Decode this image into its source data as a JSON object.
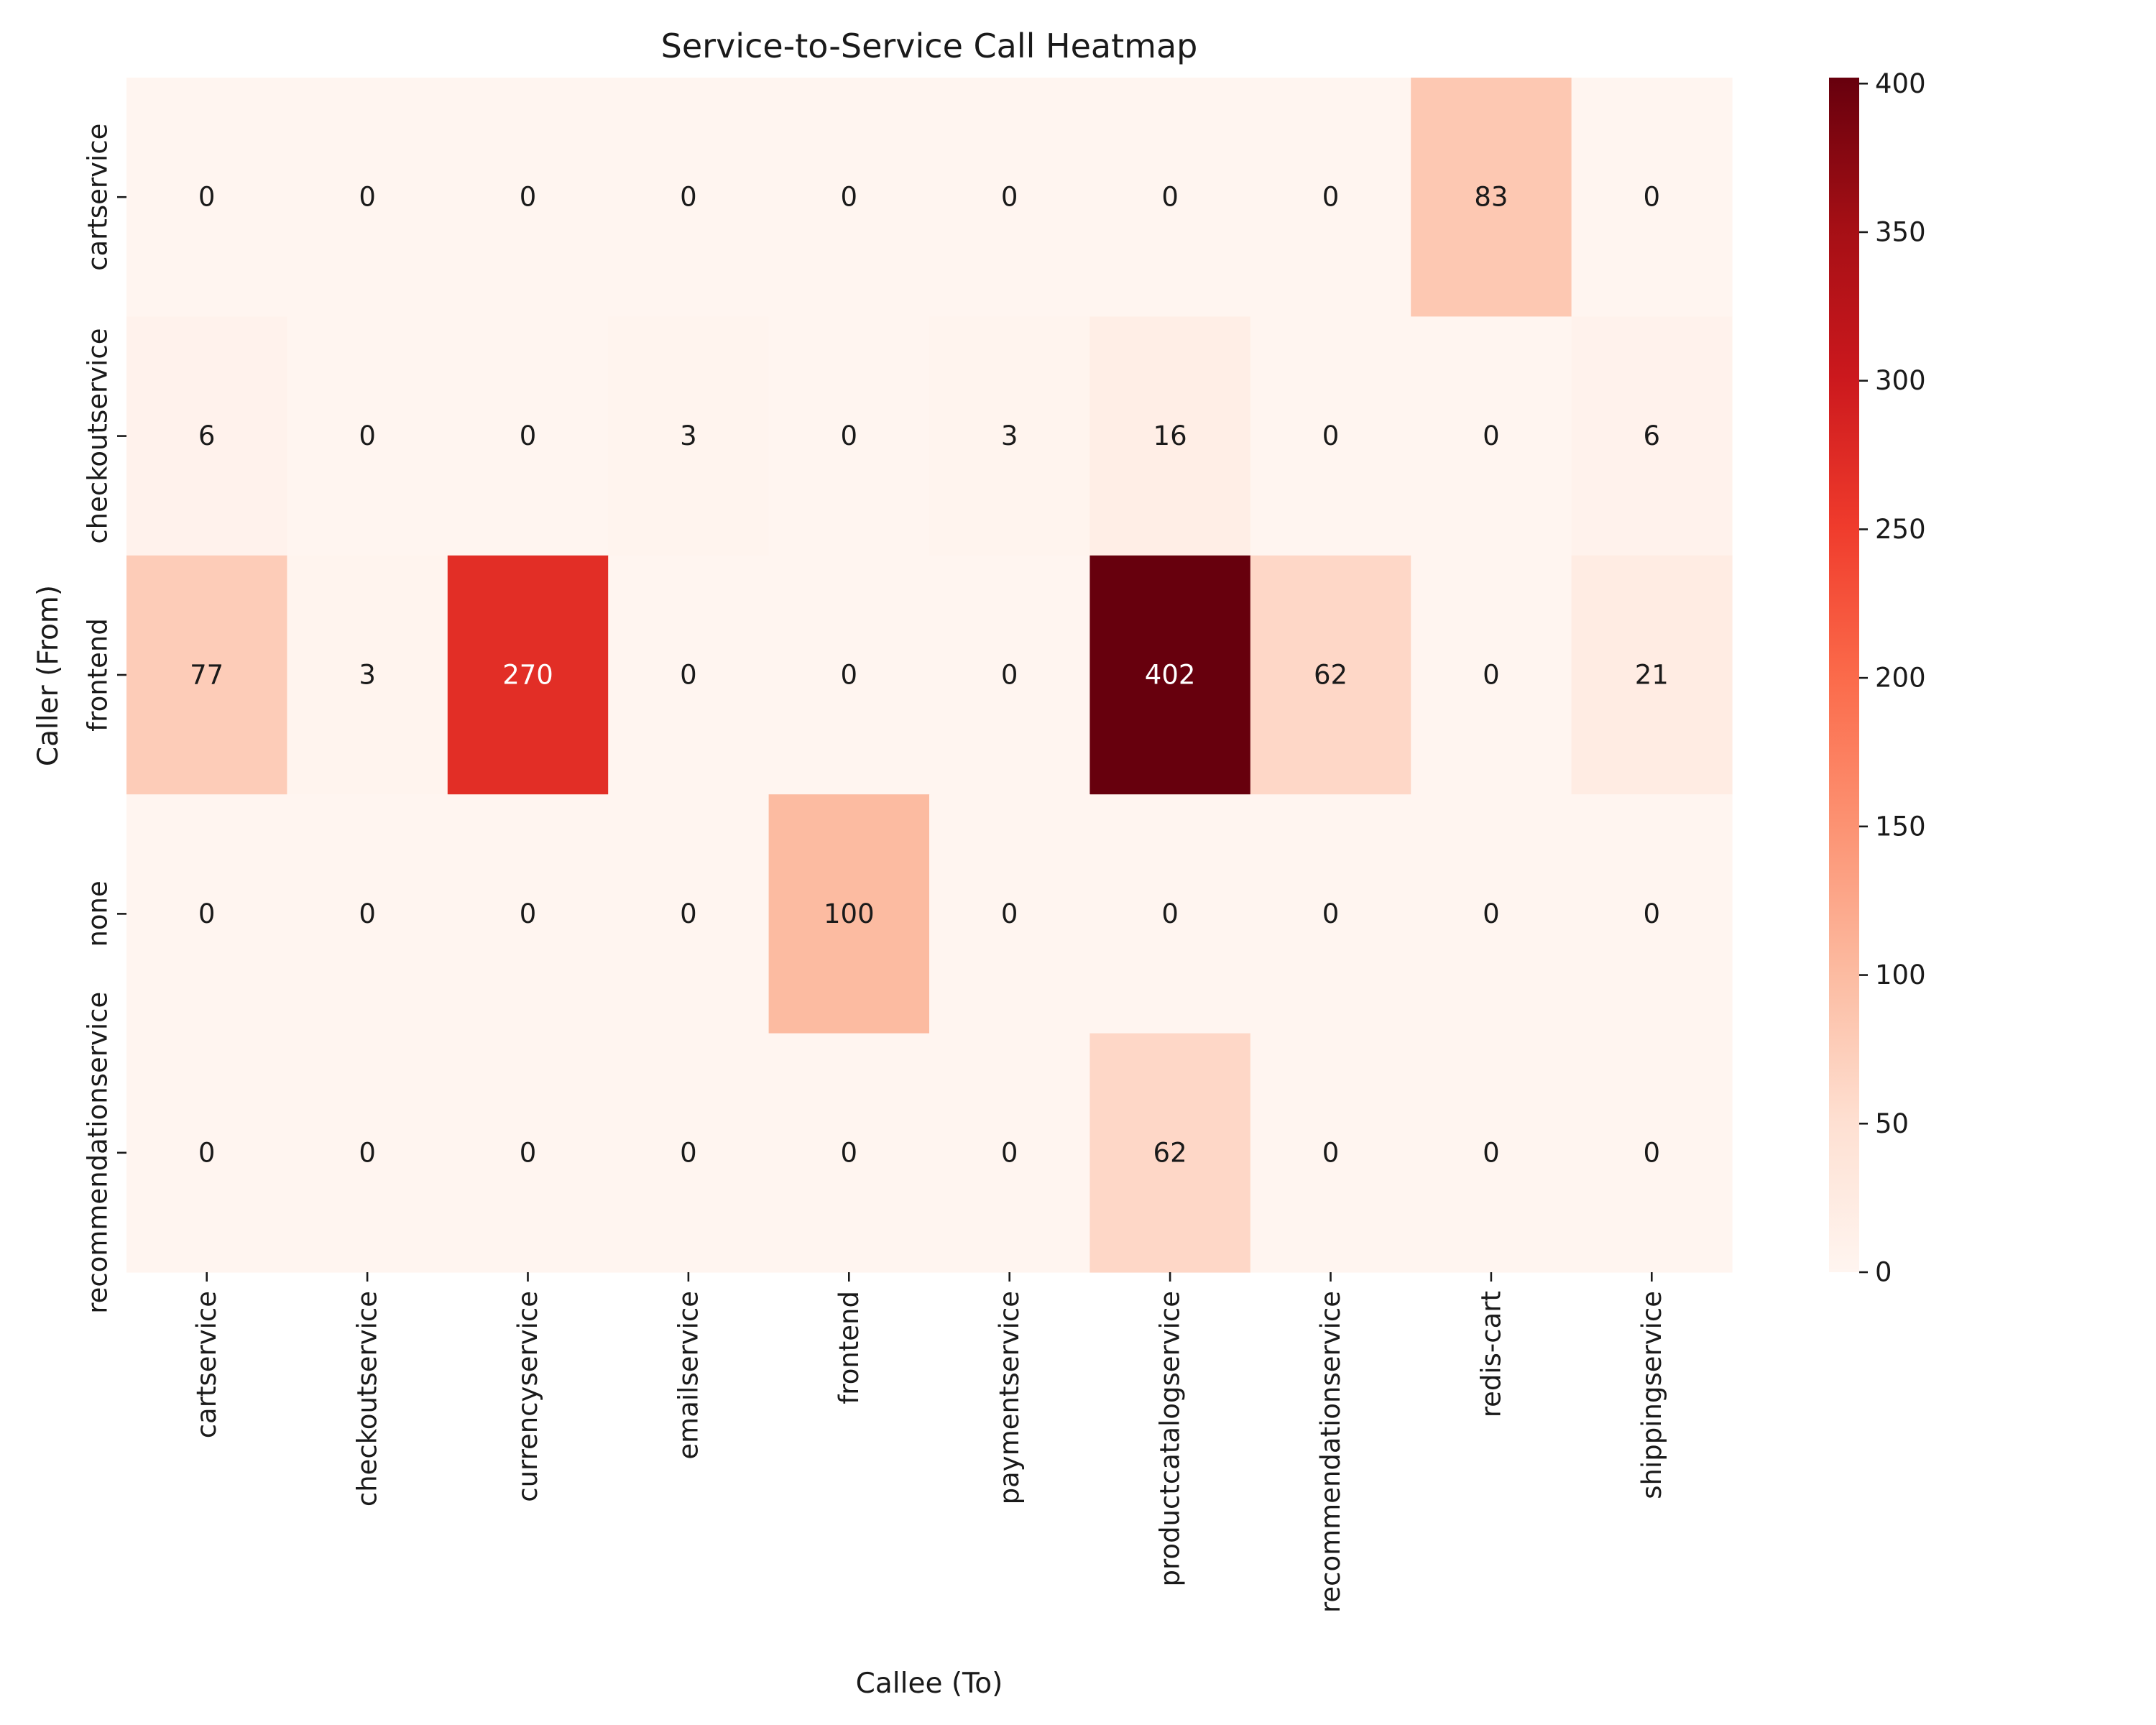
{
  "chart_data": {
    "type": "heatmap",
    "title": "Service-to-Service Call Heatmap",
    "xlabel": "Callee (To)",
    "ylabel": "Caller (From)",
    "colormap": "Reds",
    "x_categories": [
      "cartservice",
      "checkoutservice",
      "currencyservice",
      "emailservice",
      "frontend",
      "paymentservice",
      "productcatalogservice",
      "recommendationservice",
      "redis-cart",
      "shippingservice"
    ],
    "y_categories": [
      "cartservice",
      "checkoutservice",
      "frontend",
      "none",
      "recommendationservice"
    ],
    "values": [
      [
        0,
        0,
        0,
        0,
        0,
        0,
        0,
        0,
        83,
        0
      ],
      [
        6,
        0,
        0,
        3,
        0,
        3,
        16,
        0,
        0,
        6
      ],
      [
        77,
        3,
        270,
        0,
        0,
        0,
        402,
        62,
        0,
        21
      ],
      [
        0,
        0,
        0,
        0,
        100,
        0,
        0,
        0,
        0,
        0
      ],
      [
        0,
        0,
        0,
        0,
        0,
        0,
        62,
        0,
        0,
        0
      ]
    ],
    "colorbar": {
      "range": [
        0,
        402
      ],
      "ticks": [
        0,
        50,
        100,
        150,
        200,
        250,
        300,
        350,
        400
      ]
    },
    "annotations": "cell values shown in each cell"
  }
}
